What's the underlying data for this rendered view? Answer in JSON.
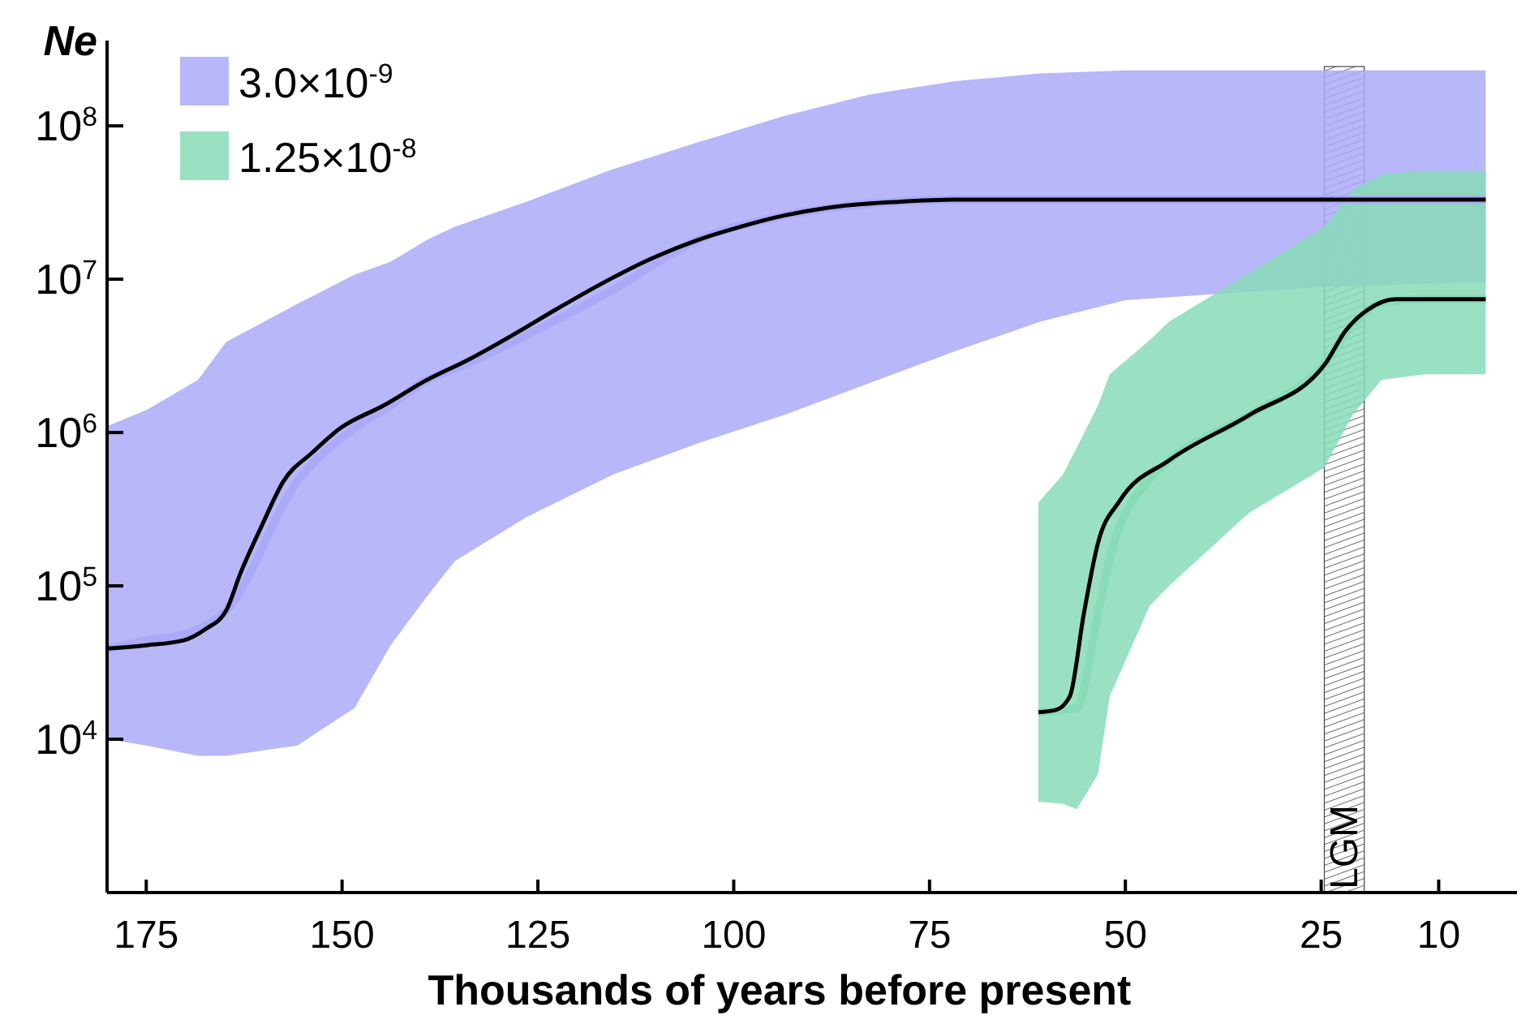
{
  "chart_data": {
    "type": "line",
    "xlabel": "Thousands of years before present",
    "ylabel": "Ne",
    "log": "y",
    "xlim": [
      180,
      0
    ],
    "xticks": [
      175,
      150,
      125,
      100,
      75,
      50,
      25,
      10
    ],
    "ylim": [
      1000,
      360000000
    ],
    "yticks": [
      {
        "value": 10000,
        "label": "10$^{4}$"
      },
      {
        "value": 100000,
        "label": "10$^{5}$"
      },
      {
        "value": 1000000,
        "label": "10$^{6}$"
      },
      {
        "value": 10000000,
        "label": "10$^{7}$"
      },
      {
        "value": 100000000,
        "label": "10$^{8}$"
      }
    ],
    "legend": "top left",
    "grid": false,
    "series": [
      {
        "type": "line",
        "name": "3.0×10$^{-9}$",
        "color": "#aaaaf8",
        "x": [
          180,
          175,
          168.4,
          164.8,
          155.7,
          148.4,
          143.8,
          139.2,
          135.6,
          126.5,
          115.5,
          104.6,
          93.6,
          82.7,
          71.7,
          60.8,
          50,
          25,
          4
        ],
        "upper": [
          1100000,
          1400000,
          2200000,
          3900000,
          6900000,
          10700000,
          13000000,
          18000000,
          22000000,
          32000000,
          52000000,
          78000000,
          116000000,
          160000000,
          196000000,
          220000000,
          230000000,
          230000000,
          230000000
        ],
        "values": [
          39000,
          44000,
          52000,
          69000,
          480000,
          1070000,
          1500000,
          2200000,
          2600000,
          4300000,
          8500000,
          18000000,
          26000000,
          31000000,
          33000000,
          33000000,
          33000000,
          33000000,
          33000000
        ],
        "lower": [
          10000,
          9100,
          7800,
          7800,
          9100,
          16000,
          41000,
          85000,
          145000,
          280000,
          530000,
          850000,
          1300000,
          2100000,
          3400000,
          5300000,
          7300000,
          8900000,
          9600000
        ]
      },
      {
        "type": "line",
        "name": "1.25×10$^{-8}$",
        "color": "#88dcb8",
        "x": [
          61.1,
          58,
          56.2,
          53.5,
          52,
          46.9,
          44.4,
          34.2,
          24.6,
          21,
          17.3,
          11.8,
          4
        ],
        "upper": [
          350000,
          530000,
          800000,
          1500000,
          2400000,
          4000000,
          5300000,
          11000000,
          22000000,
          38000000,
          48000000,
          51000000,
          51000000
        ],
        "values": [
          15000,
          15500,
          16000,
          66000,
          150000,
          500000,
          660000,
          1300000,
          2800000,
          5000000,
          7000000,
          7400000,
          7400000
        ],
        "lower": [
          3900,
          3800,
          3500,
          5900,
          19000,
          74000,
          100000,
          300000,
          590000,
          1300000,
          2200000,
          2400000,
          2400000
        ]
      },
      {
        "color": "#000000",
        "x": [
          180,
          175,
          170.3,
          167.5,
          164.8,
          163,
          160.2,
          157.5,
          153.8,
          150.2,
          144.7,
          139.2,
          133.8,
          128.3,
          122.8,
          117.3,
          110,
          104.6,
          99.1,
          93.6,
          86.3,
          79,
          71.7,
          64.4,
          50,
          25,
          19.1,
          4
        ],
        "values": [
          39000,
          41000,
          44000,
          52000,
          69000,
          120000,
          250000,
          480000,
          740000,
          1070000,
          1500000,
          2200000,
          3000000,
          4300000,
          6300000,
          9100000,
          14000000,
          18000000,
          22000000,
          26000000,
          30000000,
          32000000,
          33000000,
          33000000,
          33000000,
          33000000,
          33000000,
          33000000
        ]
      },
      {
        "color": "#000000",
        "x": [
          61.1,
          58.9,
          57.1,
          55.3,
          53.5,
          50.7,
          44.4,
          34.2,
          24.5,
          21.9,
          19.1,
          15.5,
          4
        ],
        "values": [
          15000,
          15500,
          19000,
          66000,
          190000,
          360000,
          660000,
          1300000,
          2800000,
          4600000,
          6300000,
          7400000,
          7400000
        ]
      }
    ],
    "bands": [
      {
        "axis": "x",
        "from": 24.6,
        "to": 19.5,
        "label": "LGM"
      }
    ]
  }
}
